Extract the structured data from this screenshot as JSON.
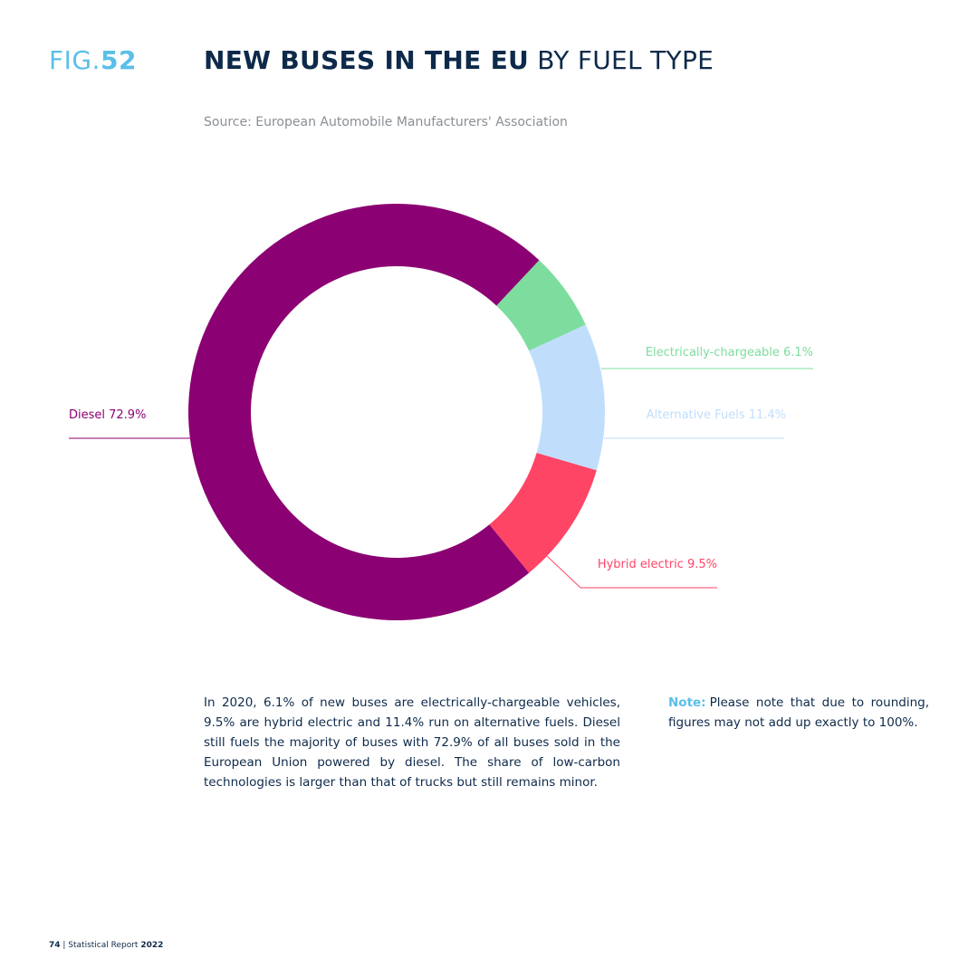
{
  "header": {
    "fig_prefix": "FIG.",
    "fig_number": "52",
    "title_bold": "NEW BUSES IN THE EU",
    "title_rest": " BY FUEL TYPE",
    "source": "Source: European Automobile Manufacturers' Association"
  },
  "chart_data": {
    "type": "pie",
    "donut": true,
    "categories": [
      "Diesel",
      "Electrically-chargeable",
      "Alternative Fuels",
      "Hybrid electric"
    ],
    "values": [
      72.9,
      6.1,
      11.4,
      9.5
    ],
    "labels": [
      "Diesel 72.9%",
      "Electrically-chargeable 6.1%",
      "Alternative Fuels 11.4%",
      "Hybrid electric 9.5%"
    ],
    "colors": [
      "#8b0072",
      "#7ddd9e",
      "#c0defc",
      "#ff4566"
    ]
  },
  "text": {
    "body": "In 2020, 6.1% of new buses are electrically-chargeable vehicles, 9.5% are hybrid electric and 11.4% run on alternative fuels. Diesel still fuels the majority of buses with 72.9% of all buses sold in the European Union powered by diesel. The share of low-carbon technologies is larger than that of trucks but still remains minor.",
    "note_label": "Note:",
    "note": "Please note that due to rounding, figures may not add up exactly to 100%."
  },
  "footer": {
    "page": "74",
    "separator": " | Statistical Report ",
    "year": "2022"
  }
}
